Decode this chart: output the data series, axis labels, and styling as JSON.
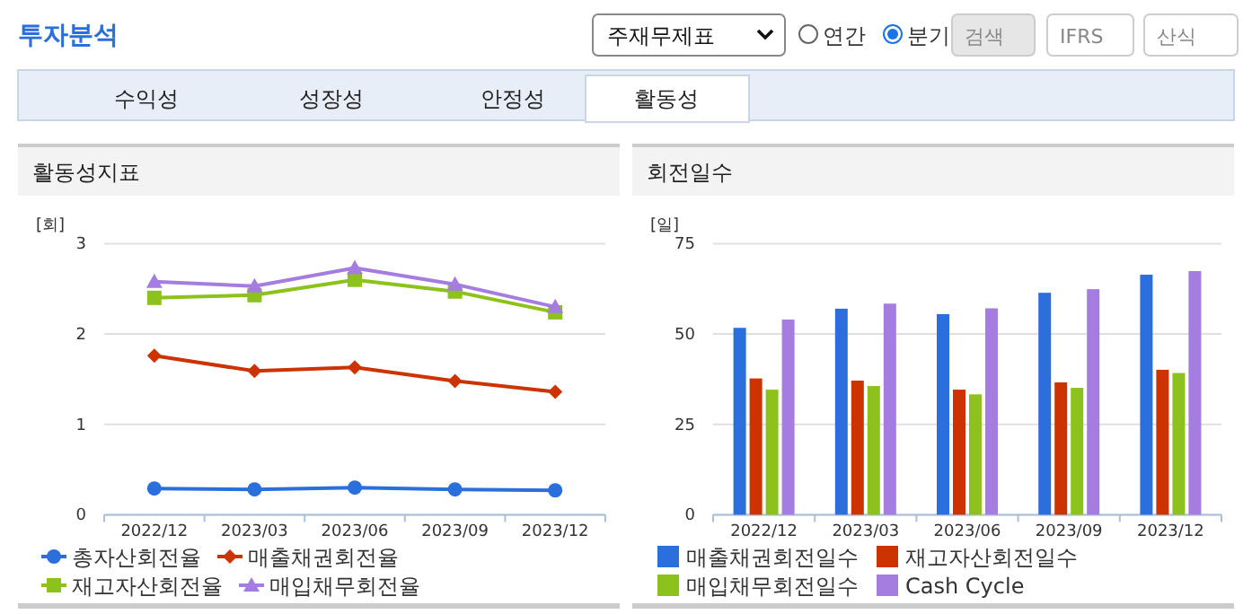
{
  "chart_data": [
    {
      "type": "other",
      "title": "투자분석",
      "annotations": [
        "주재무제표",
        "연간",
        "분기",
        "검색",
        "IFRS",
        "산식",
        "수익성",
        "성장성",
        "안정성",
        "활동성"
      ]
    },
    {
      "type": "line",
      "title": "활동성지표",
      "ylabel": "[회]",
      "categories": [
        "2022/12",
        "2023/03",
        "2023/06",
        "2023/09",
        "2023/12"
      ],
      "ylim": [
        0,
        3
      ],
      "yticks": [
        0,
        1,
        2,
        3
      ],
      "grid": "y",
      "legend": "bottom",
      "series": [
        {
          "name": "총자산회전율",
          "color": "#2a6fdb",
          "marker": "circle",
          "values": [
            0.29,
            0.28,
            0.3,
            0.28,
            0.27
          ]
        },
        {
          "name": "매출채권회전율",
          "color": "#cc3300",
          "marker": "diamond",
          "values": [
            1.76,
            1.59,
            1.63,
            1.48,
            1.36
          ]
        },
        {
          "name": "재고자산회전율",
          "color": "#8cc21b",
          "marker": "square",
          "values": [
            2.4,
            2.43,
            2.6,
            2.47,
            2.24
          ]
        },
        {
          "name": "매입채무회전율",
          "color": "#a57de0",
          "marker": "triangle",
          "values": [
            2.58,
            2.53,
            2.73,
            2.55,
            2.3
          ]
        }
      ]
    },
    {
      "type": "bar",
      "title": "회전일수",
      "ylabel": "[일]",
      "categories": [
        "2022/12",
        "2023/03",
        "2023/06",
        "2023/09",
        "2023/12"
      ],
      "ylim": [
        0,
        75
      ],
      "yticks": [
        0,
        25,
        50,
        75
      ],
      "grid": "y",
      "legend": "bottom",
      "series": [
        {
          "name": "매출채권회전일수",
          "color": "#2a6fdb",
          "values": [
            51.7,
            57.0,
            55.5,
            61.4,
            66.4
          ]
        },
        {
          "name": "재고자산회전일수",
          "color": "#cc3300",
          "values": [
            37.7,
            37.1,
            34.6,
            36.6,
            40.1
          ]
        },
        {
          "name": "매입채무회전일수",
          "color": "#8cc21b",
          "values": [
            34.6,
            35.6,
            33.3,
            35.1,
            39.2
          ]
        },
        {
          "name": "Cash Cycle",
          "color": "#a57de0",
          "values": [
            54.0,
            58.4,
            57.1,
            62.4,
            67.4
          ]
        }
      ]
    }
  ]
}
